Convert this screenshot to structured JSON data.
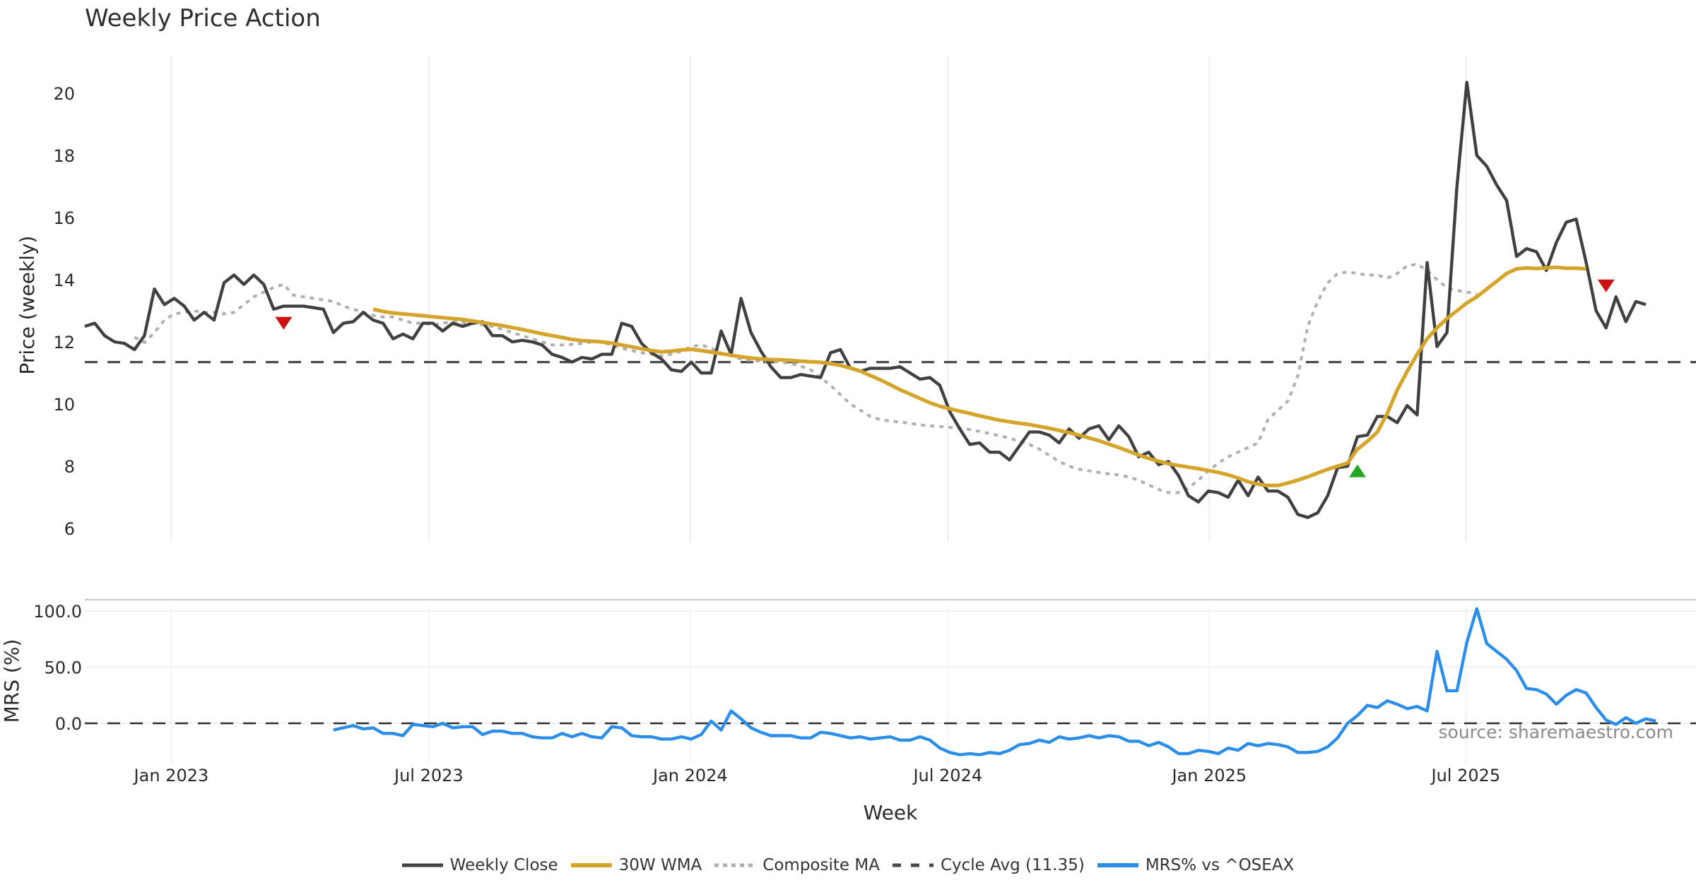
{
  "title": "Weekly Price Action",
  "source_note": "source: sharemaestro.com",
  "colors": {
    "weekly_close": "#404040",
    "wma": "#d4a52a",
    "composite_ma": "#b0b0b0",
    "cycle_avg": "#4a4a4a",
    "mrs": "#2a8ee8",
    "sell_marker": "#cc1111",
    "buy_marker": "#22a822"
  },
  "legend": [
    {
      "key": "weekly_close",
      "label": "Weekly Close",
      "style": "solid"
    },
    {
      "key": "wma",
      "label": "30W WMA",
      "style": "solid"
    },
    {
      "key": "composite_ma",
      "label": "Composite MA",
      "style": "dotted"
    },
    {
      "key": "cycle_avg",
      "label": "Cycle Avg (11.35)",
      "style": "dashed"
    },
    {
      "key": "mrs",
      "label": "MRS% vs ^OSEAX",
      "style": "solid"
    }
  ],
  "chart_data": [
    {
      "type": "line",
      "panel": "price",
      "title": "Weekly Price Action",
      "xlabel": "Week",
      "ylabel": "Price (weekly)",
      "ylim": [
        5.6,
        21.2
      ],
      "yticks": [
        6,
        8,
        10,
        12,
        14,
        16,
        18,
        20
      ],
      "ytick_labels": [
        "6",
        "8",
        "10",
        "12",
        "14",
        "16",
        "18",
        "20"
      ],
      "x_start": "2022-11-07",
      "x_step_days": 7,
      "xlim_weeks": [
        -0.2,
        162
      ],
      "xticks": [
        {
          "label": "Jan 2023",
          "week": 8.7
        },
        {
          "label": "Jul 2023",
          "week": 34.6
        },
        {
          "label": "Jan 2024",
          "week": 60.9
        },
        {
          "label": "Jul 2024",
          "week": 86.8
        },
        {
          "label": "Jan 2025",
          "week": 113.1
        },
        {
          "label": "Jul 2025",
          "week": 138.9
        }
      ],
      "grid": "vertical",
      "cycle_avg": 11.35,
      "series": [
        {
          "name": "Weekly Close",
          "key": "weekly_close",
          "start_week": 0,
          "values": [
            12.5,
            12.6,
            12.2,
            12.0,
            11.95,
            11.75,
            12.2,
            13.7,
            13.2,
            13.4,
            13.15,
            12.7,
            12.95,
            12.7,
            13.9,
            14.15,
            13.85,
            14.15,
            13.85,
            13.05,
            13.15,
            13.15,
            13.15,
            13.1,
            13.05,
            12.3,
            12.6,
            12.65,
            12.95,
            12.7,
            12.6,
            12.1,
            12.25,
            12.1,
            12.6,
            12.6,
            12.35,
            12.6,
            12.5,
            12.6,
            12.65,
            12.2,
            12.2,
            12.0,
            12.05,
            12.0,
            11.9,
            11.6,
            11.5,
            11.35,
            11.5,
            11.45,
            11.6,
            11.6,
            12.6,
            12.5,
            11.95,
            11.65,
            11.45,
            11.1,
            11.05,
            11.35,
            11.0,
            11.0,
            12.35,
            11.6,
            13.4,
            12.3,
            11.7,
            11.2,
            10.85,
            10.85,
            10.95,
            10.9,
            10.85,
            11.65,
            11.75,
            11.15,
            11.05,
            11.15,
            11.15,
            11.15,
            11.2,
            11.0,
            10.8,
            10.85,
            10.6,
            9.75,
            9.2,
            8.7,
            8.75,
            8.45,
            8.45,
            8.2,
            8.65,
            9.1,
            9.1,
            9.0,
            8.75,
            9.2,
            8.9,
            9.2,
            9.3,
            8.85,
            9.3,
            8.95,
            8.3,
            8.45,
            8.05,
            8.15,
            7.7,
            7.05,
            6.85,
            7.2,
            7.15,
            7.0,
            7.55,
            7.05,
            7.65,
            7.2,
            7.2,
            7.0,
            6.45,
            6.35,
            6.5,
            7.05,
            7.95,
            8.0,
            8.95,
            9.0,
            9.6,
            9.6,
            9.4,
            9.95,
            9.65,
            14.55,
            11.85,
            12.3,
            17.0,
            20.35,
            18.0,
            17.65,
            17.05,
            16.55,
            14.75,
            15.0,
            14.9,
            14.3,
            15.2,
            15.85,
            15.95,
            14.55,
            13.0,
            12.45,
            13.45,
            12.65,
            13.3,
            13.2
          ]
        },
        {
          "name": "30W WMA",
          "key": "wma",
          "start_week": 29,
          "values": [
            13.05,
            12.98,
            12.93,
            12.9,
            12.87,
            12.84,
            12.81,
            12.78,
            12.75,
            12.72,
            12.67,
            12.62,
            12.57,
            12.52,
            12.46,
            12.4,
            12.33,
            12.26,
            12.2,
            12.14,
            12.08,
            12.04,
            12.02,
            12.0,
            11.96,
            11.9,
            11.84,
            11.78,
            11.72,
            11.68,
            11.7,
            11.74,
            11.76,
            11.72,
            11.67,
            11.62,
            11.57,
            11.52,
            11.48,
            11.45,
            11.43,
            11.42,
            11.4,
            11.38,
            11.36,
            11.34,
            11.3,
            11.24,
            11.16,
            11.06,
            10.92,
            10.78,
            10.62,
            10.46,
            10.32,
            10.18,
            10.04,
            9.93,
            9.85,
            9.77,
            9.7,
            9.62,
            9.55,
            9.48,
            9.43,
            9.38,
            9.34,
            9.28,
            9.22,
            9.15,
            9.08,
            9.0,
            8.91,
            8.82,
            8.71,
            8.6,
            8.48,
            8.36,
            8.25,
            8.16,
            8.08,
            8.02,
            7.97,
            7.92,
            7.86,
            7.8,
            7.72,
            7.62,
            7.5,
            7.42,
            7.38,
            7.38,
            7.46,
            7.55,
            7.66,
            7.78,
            7.9,
            8.0,
            8.1,
            8.55,
            8.8,
            9.1,
            9.7,
            10.45,
            11.05,
            11.6,
            12.1,
            12.45,
            12.75,
            13.0,
            13.25,
            13.45,
            13.7,
            13.95,
            14.2,
            14.35,
            14.38,
            14.36,
            14.38,
            14.4,
            14.37,
            14.37,
            14.35
          ]
        },
        {
          "name": "Composite MA",
          "key": "composite_ma",
          "start_week": 5,
          "values": [
            12.15,
            11.98,
            12.3,
            12.7,
            12.9,
            12.95,
            13.0,
            12.95,
            12.95,
            12.9,
            12.95,
            13.2,
            13.45,
            13.6,
            13.75,
            13.85,
            13.5,
            13.45,
            13.4,
            13.35,
            13.3,
            13.15,
            13.05,
            12.95,
            12.85,
            12.8,
            12.8,
            12.7,
            12.6,
            12.6,
            12.55,
            12.6,
            12.65,
            12.62,
            12.6,
            12.55,
            12.5,
            12.4,
            12.3,
            12.2,
            12.1,
            12.0,
            11.9,
            11.9,
            11.92,
            11.95,
            12.0,
            12.0,
            11.9,
            11.8,
            11.72,
            11.65,
            11.6,
            11.55,
            11.6,
            11.7,
            11.85,
            11.9,
            11.8,
            11.65,
            11.55,
            11.45,
            11.4,
            11.38,
            11.37,
            11.35,
            11.3,
            11.22,
            11.1,
            10.85,
            10.6,
            10.3,
            10.0,
            9.8,
            9.6,
            9.5,
            9.45,
            9.42,
            9.38,
            9.33,
            9.3,
            9.28,
            9.25,
            9.22,
            9.18,
            9.12,
            9.05,
            8.98,
            8.9,
            8.8,
            8.7,
            8.55,
            8.35,
            8.15,
            8.0,
            7.9,
            7.85,
            7.8,
            7.75,
            7.72,
            7.65,
            7.55,
            7.4,
            7.25,
            7.15,
            7.15,
            7.3,
            7.55,
            7.85,
            8.1,
            8.3,
            8.45,
            8.6,
            8.75,
            9.5,
            9.8,
            10.1,
            10.9,
            12.5,
            13.3,
            13.9,
            14.2,
            14.25,
            14.2,
            14.15,
            14.15,
            14.05,
            14.2,
            14.45,
            14.5,
            14.3,
            14.0,
            13.75,
            13.65,
            13.6,
            13.55
          ]
        },
        {
          "name": "Cycle Avg (11.35)",
          "key": "cycle_avg",
          "value": 11.35
        }
      ],
      "markers": [
        {
          "type": "sell",
          "shape": "triangle-down",
          "week": 20,
          "value": 12.6
        },
        {
          "type": "buy",
          "shape": "triangle-up",
          "week": 128,
          "value": 7.85
        },
        {
          "type": "sell",
          "shape": "triangle-down",
          "week": 153,
          "value": 13.8
        }
      ]
    },
    {
      "type": "line",
      "panel": "mrs",
      "ylabel": "MRS (%)",
      "xlabel": "Week",
      "ylim": [
        -35,
        112
      ],
      "yticks": [
        0,
        50,
        100
      ],
      "ytick_labels": [
        "0.0",
        "50.0",
        "100.0"
      ],
      "baseline": 0,
      "series": [
        {
          "name": "MRS% vs ^OSEAX",
          "key": "mrs",
          "start_week": 25,
          "values": [
            -6,
            -4,
            -2,
            -5,
            -4,
            -9,
            -9,
            -11,
            -1,
            -2,
            -3,
            0,
            -4,
            -3,
            -3,
            -10,
            -7,
            -7,
            -9,
            -9,
            -12,
            -13,
            -13,
            -9,
            -12,
            -9,
            -12,
            -13,
            -3,
            -4,
            -11,
            -12,
            -12,
            -14,
            -14,
            -12,
            -14,
            -10,
            2,
            -6,
            11,
            4,
            -4,
            -8,
            -11,
            -11,
            -11,
            -13,
            -13,
            -8,
            -9,
            -11,
            -13,
            -12,
            -14,
            -13,
            -12,
            -15,
            -15,
            -12,
            -15,
            -22,
            -26,
            -28,
            -27,
            -28,
            -26,
            -27,
            -24,
            -19,
            -18,
            -15,
            -17,
            -12,
            -14,
            -13,
            -11,
            -13,
            -11,
            -12,
            -16,
            -16,
            -20,
            -17,
            -21,
            -27,
            -27,
            -24,
            -25,
            -27,
            -22,
            -24,
            -18,
            -20,
            -18,
            -19,
            -21,
            -26,
            -26,
            -25,
            -21,
            -13,
            0,
            7,
            16,
            14,
            20,
            17,
            13,
            15,
            11,
            64,
            29,
            29,
            72,
            102,
            71,
            64,
            57,
            47,
            31,
            30,
            26,
            17,
            25,
            30,
            27,
            14,
            3,
            -1,
            5,
            0,
            4,
            2
          ]
        }
      ]
    }
  ]
}
